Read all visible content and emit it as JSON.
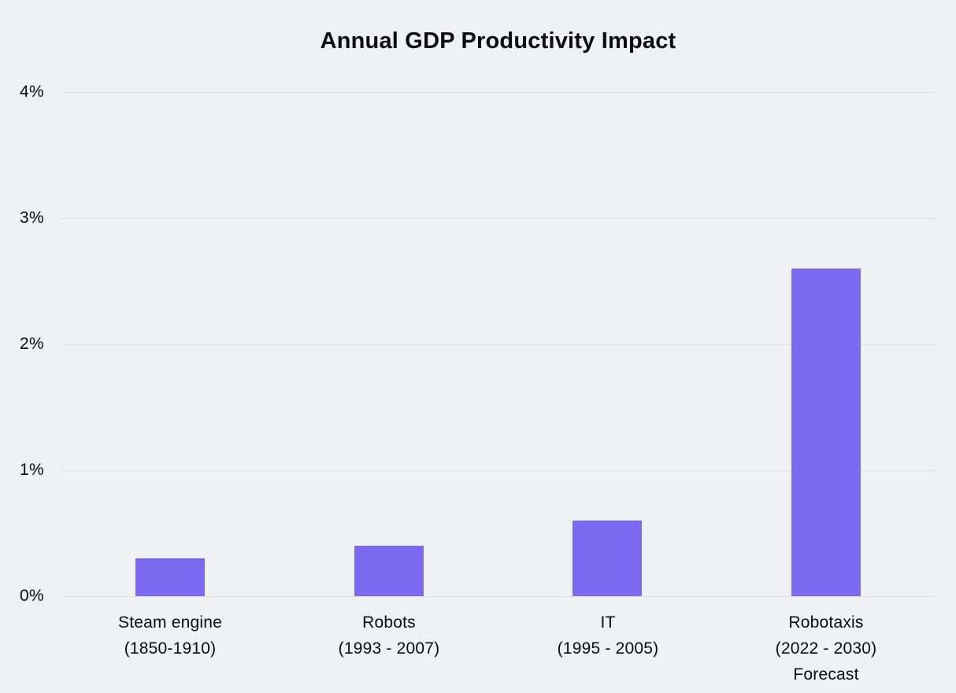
{
  "chart_data": {
    "type": "bar",
    "title": "Annual GDP Productivity Impact",
    "categories": [
      [
        "Steam engine",
        "(1850-1910)"
      ],
      [
        "Robots",
        "(1993 - 2007)"
      ],
      [
        "IT",
        "(1995 - 2005)"
      ],
      [
        "Robotaxis",
        "(2022 - 2030)",
        "Forecast"
      ]
    ],
    "values": [
      0.3,
      0.4,
      0.6,
      2.6
    ],
    "unit": "%",
    "xlabel": "",
    "ylabel": "",
    "ylim": [
      0,
      4
    ],
    "yticks": [
      0,
      1,
      2,
      3,
      4
    ],
    "ytick_labels": [
      "0%",
      "1%",
      "2%",
      "3%",
      "4%"
    ],
    "grid": true,
    "legend": "none",
    "colors": {
      "bar": "#7C6AF0",
      "background": "#F0F1F5",
      "gridline": "#D9DBDF",
      "text": "#0B0B10"
    }
  }
}
